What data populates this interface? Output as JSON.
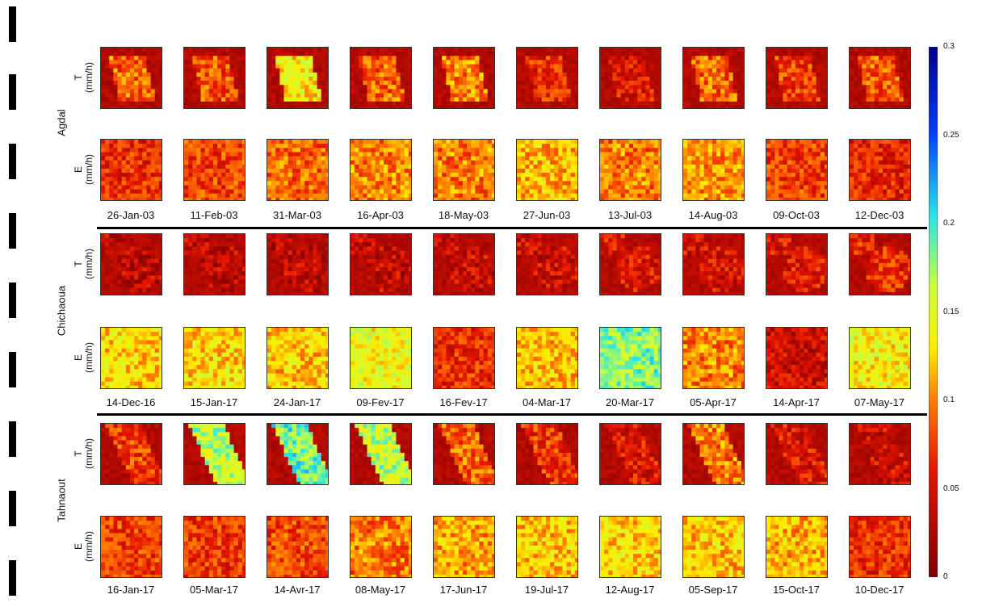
{
  "chart_data": {
    "type": "heatmap",
    "description_rows": [
      "T",
      "E"
    ],
    "value_unit": "(mm/h)",
    "colorbar": {
      "ticks": [
        "0.3",
        "0.25",
        "0.2",
        "0.15",
        "0.1",
        "0.05",
        "0"
      ],
      "tick_values": [
        0.3,
        0.25,
        0.2,
        0.15,
        0.1,
        0.05,
        0
      ],
      "range": [
        0,
        0.3
      ],
      "colors": [
        "#7f0000",
        "#ff0000",
        "#ffff00",
        "#00ffff",
        "#0000ff",
        "#00007f"
      ]
    },
    "sites": [
      {
        "name": "Agdal",
        "rows": [
          {
            "var": "T",
            "unit": "(mm/h)"
          },
          {
            "var": "E",
            "unit": "(mm/h)"
          }
        ],
        "dates": [
          "26-Jan-03",
          "11-Feb-03",
          "31-Mar-03",
          "16-Apr-03",
          "18-May-03",
          "27-Jun-03",
          "13-Jul-03",
          "14-Aug-03",
          "09-Oct-03",
          "12-Dec-03"
        ]
      },
      {
        "name": "Chichaoua",
        "rows": [
          {
            "var": "T",
            "unit": "(mm/h)"
          },
          {
            "var": "E",
            "unit": "(mm/h)"
          }
        ],
        "dates": [
          "14-Dec-16",
          "15-Jan-17",
          "24-Jan-17",
          "09-Fev-17",
          "16-Fev-17",
          "04-Mar-17",
          "20-Mar-17",
          "05-Apr-17",
          "14-Apr-17",
          "07-May-17"
        ]
      },
      {
        "name": "Tahnaout",
        "rows": [
          {
            "var": "T",
            "unit": "(mm/h)"
          },
          {
            "var": "E",
            "unit": "(mm/h)"
          }
        ],
        "dates": [
          "16-Jan-17",
          "05-Mar-17",
          "14-Avr-17",
          "08-May-17",
          "17-Jun-17",
          "19-Jul-17",
          "12-Aug-17",
          "05-Sep-17",
          "15-Oct-17",
          "10-Dec-17"
        ]
      }
    ]
  }
}
